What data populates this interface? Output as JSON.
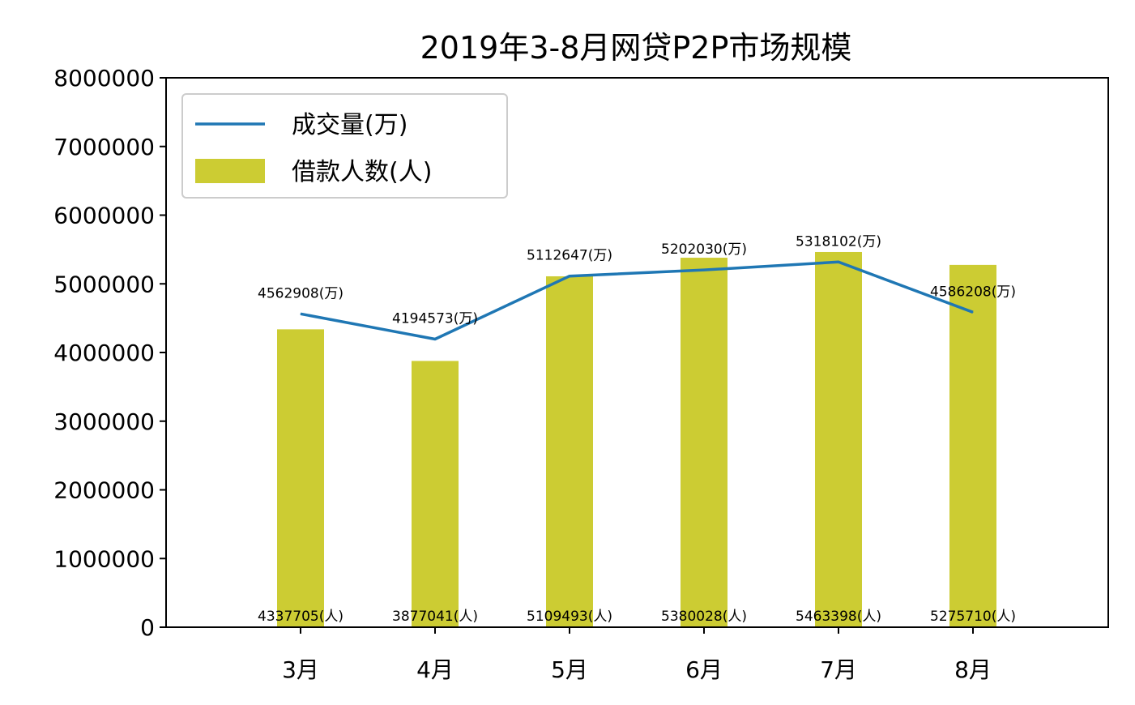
{
  "chart_data": {
    "type": "bar",
    "title": "2019年3-8月网贷P2P市场规模",
    "xlabel": "",
    "ylabel": "",
    "categories": [
      "3月",
      "4月",
      "5月",
      "6月",
      "7月",
      "8月"
    ],
    "ylim": [
      0,
      8000000
    ],
    "yticks": [
      "0",
      "1000000",
      "2000000",
      "3000000",
      "4000000",
      "5000000",
      "6000000",
      "7000000",
      "8000000"
    ],
    "legend_position": "top-left",
    "grid": false,
    "series": [
      {
        "name": "成交量(万)",
        "kind": "line",
        "color": "#1f77b4",
        "values": [
          4562908,
          4194573,
          5112647,
          5202030,
          5318102,
          4586208
        ],
        "labels": [
          "4562908(万)",
          "4194573(万)",
          "5112647(万)",
          "5202030(万)",
          "5318102(万)",
          "4586208(万)"
        ]
      },
      {
        "name": "借款人数(人)",
        "kind": "bar",
        "color": "#cccc33",
        "values": [
          4337705,
          3877041,
          5109493,
          5380028,
          5463398,
          5275710
        ],
        "labels": [
          "4337705(人)",
          "3877041(人)",
          "5109493(人)",
          "5380028(人)",
          "5463398(人)",
          "5275710(人)"
        ]
      }
    ]
  }
}
